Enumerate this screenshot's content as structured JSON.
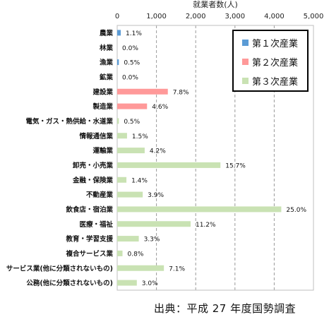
{
  "chart_data": {
    "type": "bar",
    "orientation": "horizontal",
    "xlabel": "就業者数(人)",
    "xlim": [
      0,
      5000
    ],
    "xticks": [
      "0",
      "1,000",
      "2,000",
      "3,000",
      "4,000",
      "5,000"
    ],
    "grid": "vertical dashed",
    "legend_position": "top-right",
    "series": [
      {
        "name": "第１次産業",
        "color": "#5b9bd5"
      },
      {
        "name": "第２次産業",
        "color": "#ff9999"
      },
      {
        "name": "第３次産業",
        "color": "#c9e2b3"
      }
    ],
    "rows": [
      {
        "category": "農業",
        "value": 90,
        "label": "1.1%",
        "series": 0
      },
      {
        "category": "林業",
        "value": 0,
        "label": "0.0%",
        "series": 0
      },
      {
        "category": "漁業",
        "value": 42,
        "label": "0.5%",
        "series": 0
      },
      {
        "category": "鉱業",
        "value": 0,
        "label": "0.0%",
        "series": 1
      },
      {
        "category": "建設業",
        "value": 1290,
        "label": "7.8%",
        "series": 1
      },
      {
        "category": "製造業",
        "value": 760,
        "label": "4.6%",
        "series": 1
      },
      {
        "category": "電気・ガス・熱供給・水道業",
        "value": 42,
        "label": "0.5%",
        "series": 2
      },
      {
        "category": "情報通信業",
        "value": 250,
        "label": "1.5%",
        "series": 2
      },
      {
        "category": "運輸業",
        "value": 700,
        "label": "4.2%",
        "series": 2
      },
      {
        "category": "卸売・小売業",
        "value": 2630,
        "label": "15.7%",
        "series": 2
      },
      {
        "category": "金融・保険業",
        "value": 235,
        "label": "1.4%",
        "series": 2
      },
      {
        "category": "不動産業",
        "value": 650,
        "label": "3.9%",
        "series": 2
      },
      {
        "category": "飲食店・宿泊業",
        "value": 4180,
        "label": "25.0%",
        "series": 2
      },
      {
        "category": "医療・福祉",
        "value": 1870,
        "label": "11.2%",
        "series": 2
      },
      {
        "category": "教育・学習支援",
        "value": 550,
        "label": "3.3%",
        "series": 2
      },
      {
        "category": "複合サービス業",
        "value": 135,
        "label": "0.8%",
        "series": 2
      },
      {
        "category": "サービス業(他に分類されないもの)",
        "value": 1190,
        "label": "7.1%",
        "series": 2
      },
      {
        "category": "公務(他に分類されないもの)",
        "value": 500,
        "label": "3.0%",
        "series": 2
      }
    ]
  },
  "source": "出典：平成 27 年度国勢調査"
}
